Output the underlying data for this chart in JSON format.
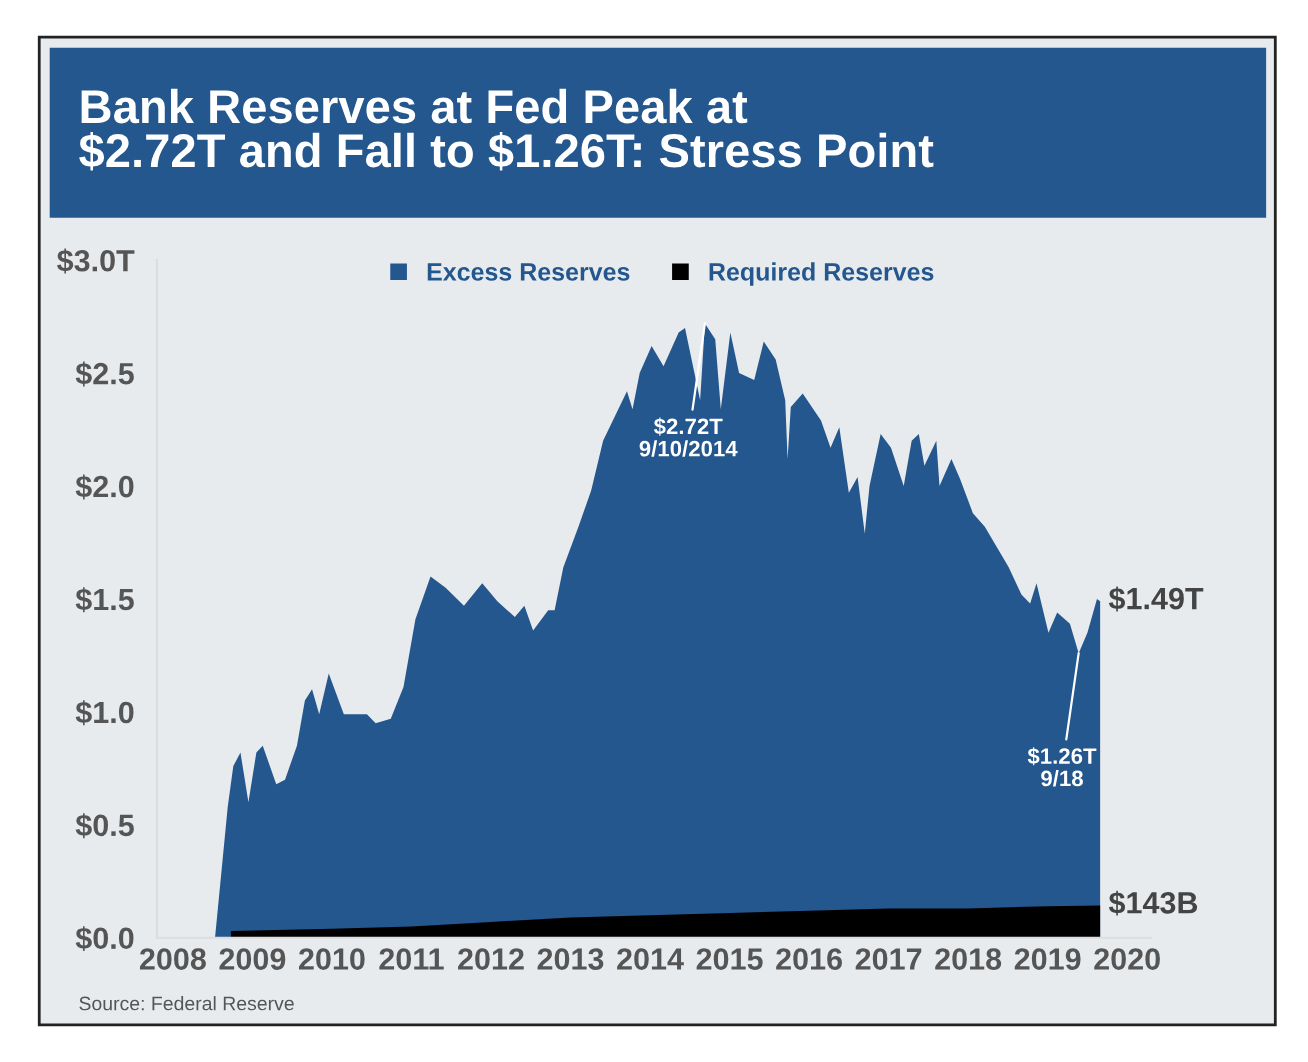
{
  "chart_data": {
    "type": "area",
    "title": "Bank Reserves at Fed Peak at\n$2.72T and Fall to $1.26T: Stress Point",
    "legend": "top",
    "grid": false,
    "xlim": [
      2007.8,
      2020.3
    ],
    "xticks": [
      2008,
      2009,
      2010,
      2011,
      2012,
      2013,
      2014,
      2015,
      2016,
      2017,
      2018,
      2019,
      2020
    ],
    "ylim": [
      0,
      3
    ],
    "yticks": [
      {
        "value": 0,
        "label": "$0.0"
      },
      {
        "value": 0.5,
        "label": "$0.5"
      },
      {
        "value": 1,
        "label": "$1.0"
      },
      {
        "value": 1.5,
        "label": "$1.5"
      },
      {
        "value": 2,
        "label": "$2.0"
      },
      {
        "value": 2.5,
        "label": "$2.5"
      },
      {
        "value": 3,
        "label": "$3.0T"
      }
    ],
    "series": [
      {
        "name": "Excess Reserves",
        "color": "#23578e",
        "x": [
          2008.53,
          2008.69,
          2008.76,
          2008.85,
          2008.95,
          2009.05,
          2009.13,
          2009.3,
          2009.41,
          2009.56,
          2009.66,
          2009.75,
          2009.84,
          2009.96,
          2010.15,
          2010.44,
          2010.55,
          2010.74,
          2010.9,
          2011.05,
          2011.24,
          2011.43,
          2011.66,
          2011.89,
          2012.08,
          2012.3,
          2012.42,
          2012.53,
          2012.72,
          2012.8,
          2012.91,
          2013.1,
          2013.26,
          2013.41,
          2013.56,
          2013.71,
          2013.78,
          2013.87,
          2014.02,
          2014.17,
          2014.36,
          2014.44,
          2014.63,
          2014.69,
          2014.82,
          2014.89,
          2015.01,
          2015.12,
          2015.31,
          2015.43,
          2015.58,
          2015.7,
          2015.73,
          2015.77,
          2015.92,
          2016.15,
          2016.27,
          2016.38,
          2016.5,
          2016.61,
          2016.7,
          2016.76,
          2016.9,
          2017.03,
          2017.19,
          2017.29,
          2017.38,
          2017.45,
          2017.6,
          2017.64,
          2017.79,
          2017.9,
          2018.06,
          2018.21,
          2018.36,
          2018.51,
          2018.67,
          2018.78,
          2018.86,
          2019.01,
          2019.12,
          2019.28,
          2019.39,
          2019.5,
          2019.62,
          2019.66
        ],
        "values": [
          0,
          0.58,
          0.76,
          0.82,
          0.6,
          0.82,
          0.85,
          0.68,
          0.7,
          0.85,
          1.05,
          1.1,
          0.99,
          1.17,
          0.99,
          0.99,
          0.95,
          0.97,
          1.11,
          1.41,
          1.6,
          1.55,
          1.47,
          1.57,
          1.49,
          1.42,
          1.47,
          1.36,
          1.45,
          1.45,
          1.64,
          1.82,
          1.98,
          2.2,
          2.31,
          2.42,
          2.34,
          2.5,
          2.62,
          2.53,
          2.68,
          2.7,
          2.38,
          2.72,
          2.65,
          2.34,
          2.68,
          2.5,
          2.47,
          2.64,
          2.56,
          2.38,
          2.12,
          2.35,
          2.41,
          2.29,
          2.17,
          2.26,
          1.97,
          2.04,
          1.79,
          2.0,
          2.23,
          2.17,
          2.0,
          2.2,
          2.23,
          2.09,
          2.2,
          2.0,
          2.12,
          2.03,
          1.88,
          1.82,
          1.73,
          1.64,
          1.52,
          1.48,
          1.57,
          1.35,
          1.44,
          1.39,
          1.26,
          1.35,
          1.5,
          1.49
        ]
      },
      {
        "name": "Required Reserves",
        "color": "#000000",
        "x": [
          2008.73,
          2010,
          2011,
          2012,
          2013,
          2014,
          2015,
          2016,
          2017,
          2018,
          2019,
          2019.66
        ],
        "values": [
          0.03,
          0.04,
          0.05,
          0.07,
          0.09,
          0.1,
          0.11,
          0.12,
          0.13,
          0.13,
          0.14,
          0.143
        ]
      }
    ],
    "annotations": [
      {
        "text": "$2.72T\n9/10/2014",
        "x": 2014.69,
        "y": 2.72
      },
      {
        "text": "$1.26T\n9/18",
        "x": 2019.39,
        "y": 1.26
      },
      {
        "text": "$1.49T",
        "x": 2019.66,
        "y": 1.49
      },
      {
        "text": "$143B",
        "x": 2019.66,
        "y": 0.143
      },
      "Source: Federal Reserve"
    ]
  }
}
